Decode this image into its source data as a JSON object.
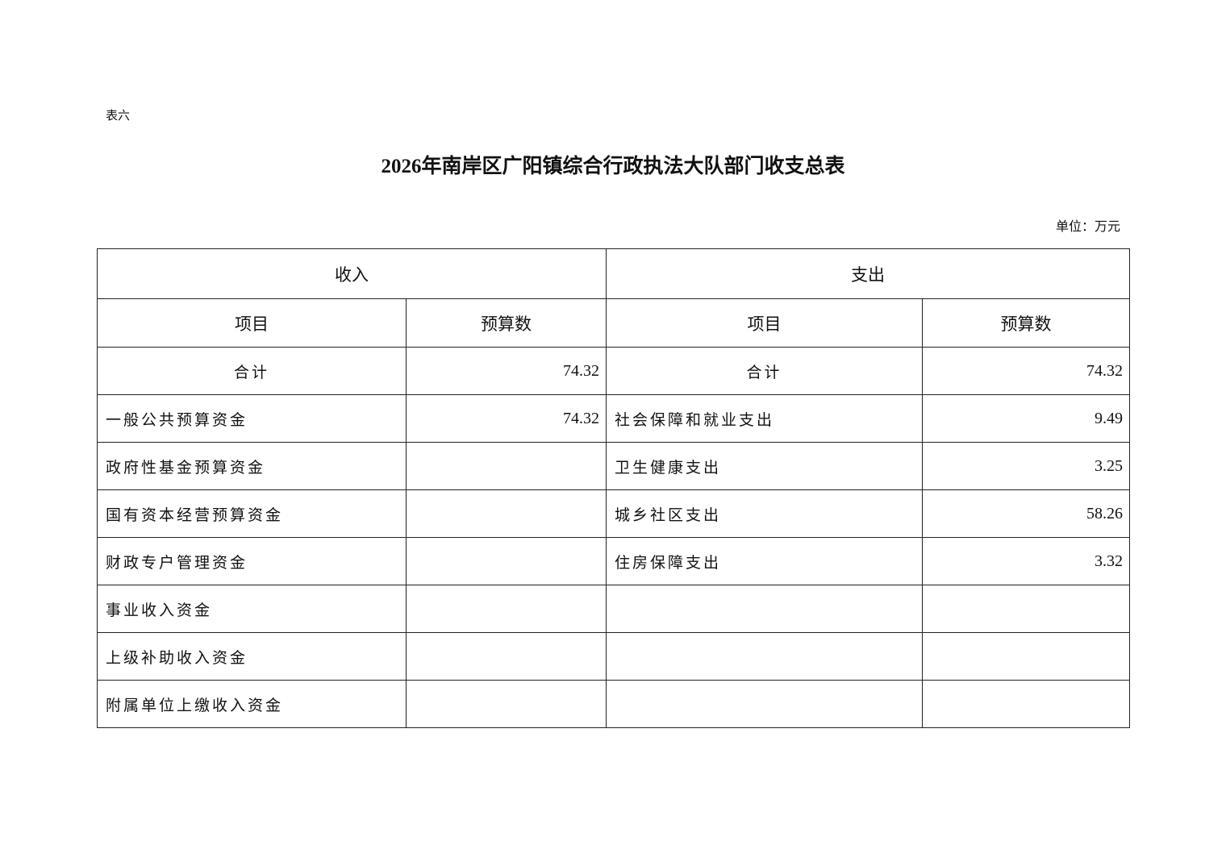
{
  "doc_label": "表六",
  "title": "2026年南岸区广阳镇综合行政执法大队部门收支总表",
  "unit": "单位：万元",
  "table": {
    "income_header": "收入",
    "expense_header": "支出",
    "col_item": "项目",
    "col_budget": "预算数",
    "total_label": "合计",
    "income_total": "74.32",
    "expense_total": "74.32",
    "rows": [
      {
        "income_item": "一般公共预算资金",
        "income_value": "74.32",
        "expense_item": "社会保障和就业支出",
        "expense_value": "9.49"
      },
      {
        "income_item": "政府性基金预算资金",
        "income_value": "",
        "expense_item": "卫生健康支出",
        "expense_value": "3.25"
      },
      {
        "income_item": "国有资本经营预算资金",
        "income_value": "",
        "expense_item": "城乡社区支出",
        "expense_value": "58.26"
      },
      {
        "income_item": "财政专户管理资金",
        "income_value": "",
        "expense_item": "住房保障支出",
        "expense_value": "3.32"
      },
      {
        "income_item": "事业收入资金",
        "income_value": "",
        "expense_item": "",
        "expense_value": ""
      },
      {
        "income_item": "上级补助收入资金",
        "income_value": "",
        "expense_item": "",
        "expense_value": ""
      },
      {
        "income_item": "附属单位上缴收入资金",
        "income_value": "",
        "expense_item": "",
        "expense_value": ""
      }
    ]
  }
}
